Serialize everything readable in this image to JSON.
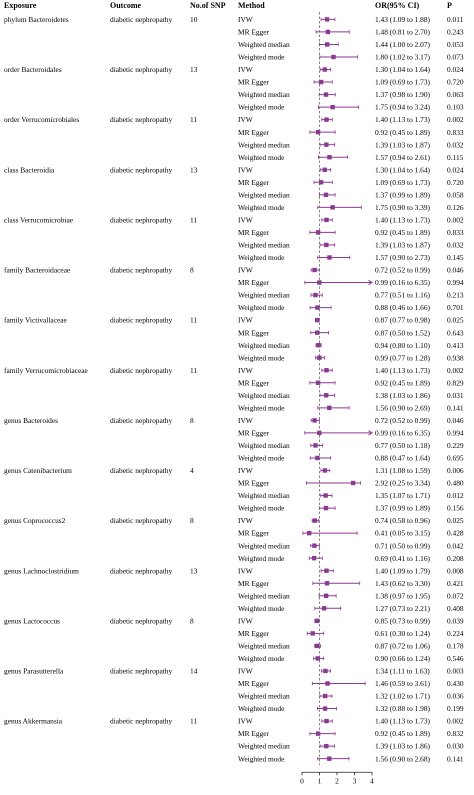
{
  "header": {
    "exposure": "Exposure",
    "outcome": "Outcome",
    "nsnp": "No.of SNP",
    "method": "Method",
    "or": "OR(95% CI)",
    "p": "P"
  },
  "chart_data": {
    "type": "forest",
    "xlim": [
      0,
      4
    ],
    "reference_line": 1,
    "x_ticks": [
      0,
      1,
      2,
      3,
      4
    ],
    "colors": {
      "marker": "#8a3a90",
      "line": "#8a3a90",
      "reference": "#666666"
    },
    "groups": [
      {
        "exposure": "phylum Bacteroidetes",
        "outcome": "diabetic nephropathy",
        "nsnp": "10",
        "rows": [
          {
            "method": "IVW",
            "or": 1.43,
            "lo": 1.09,
            "hi": 1.88,
            "or_text": "1.43 (1.09 to 1.88)",
            "p": "0.011"
          },
          {
            "method": "MR Egger",
            "or": 1.48,
            "lo": 0.81,
            "hi": 2.7,
            "or_text": "1.48 (0.81 to 2.70)",
            "p": "0.243"
          },
          {
            "method": "Weighted median",
            "or": 1.44,
            "lo": 1.0,
            "hi": 2.07,
            "or_text": "1.44 (1.00 to 2.07)",
            "p": "0.053"
          },
          {
            "method": "Weighted mode",
            "or": 1.8,
            "lo": 1.02,
            "hi": 3.17,
            "or_text": "1.80 (1.02 to 3.17)",
            "p": "0.073"
          }
        ]
      },
      {
        "exposure": "order Bacteroidales",
        "outcome": "diabetic nephropathy",
        "nsnp": "13",
        "rows": [
          {
            "method": "IVW",
            "or": 1.3,
            "lo": 1.04,
            "hi": 1.64,
            "or_text": "1.30 (1.04 to 1.64)",
            "p": "0.024"
          },
          {
            "method": "MR Egger",
            "or": 1.09,
            "lo": 0.69,
            "hi": 1.73,
            "or_text": "1.09 (0.69 to 1.73)",
            "p": "0.720"
          },
          {
            "method": "Weighted median",
            "or": 1.37,
            "lo": 0.98,
            "hi": 1.9,
            "or_text": "1.37 (0.98 to 1.90)",
            "p": "0.063"
          },
          {
            "method": "Weighted mode",
            "or": 1.75,
            "lo": 0.94,
            "hi": 3.24,
            "or_text": "1.75 (0.94 to 3.24)",
            "p": "0.103"
          }
        ]
      },
      {
        "exposure": "order Verrucomicrobiales",
        "outcome": "diabetic nephropathy",
        "nsnp": "11",
        "rows": [
          {
            "method": "IVW",
            "or": 1.4,
            "lo": 1.13,
            "hi": 1.73,
            "or_text": "1.40 (1.13 to 1.73)",
            "p": "0.002"
          },
          {
            "method": "MR Egger",
            "or": 0.92,
            "lo": 0.45,
            "hi": 1.89,
            "or_text": "0.92 (0.45 to 1.89)",
            "p": "0.833"
          },
          {
            "method": "Weighted median",
            "or": 1.39,
            "lo": 1.03,
            "hi": 1.87,
            "or_text": "1.39 (1.03 to 1.87)",
            "p": "0.032"
          },
          {
            "method": "Weighted mode",
            "or": 1.57,
            "lo": 0.94,
            "hi": 2.61,
            "or_text": "1.57 (0.94 to 2.61)",
            "p": "0.115"
          }
        ]
      },
      {
        "exposure": "class Bacteroidia",
        "outcome": "diabetic nephropathy",
        "nsnp": "13",
        "rows": [
          {
            "method": "IVW",
            "or": 1.3,
            "lo": 1.04,
            "hi": 1.64,
            "or_text": "1.30 (1.04 to 1.64)",
            "p": "0.024"
          },
          {
            "method": "MR Egger",
            "or": 1.09,
            "lo": 0.69,
            "hi": 1.73,
            "or_text": "1.09 (0.69 to 1.73)",
            "p": "0.720"
          },
          {
            "method": "Weighted median",
            "or": 1.37,
            "lo": 0.99,
            "hi": 1.89,
            "or_text": "1.37 (0.99 to 1.89)",
            "p": "0.058"
          },
          {
            "method": "Weighted mode",
            "or": 1.75,
            "lo": 0.9,
            "hi": 3.39,
            "or_text": "1.75 (0.90 to 3.39)",
            "p": "0.126"
          }
        ]
      },
      {
        "exposure": "class Verrucomicrobiae",
        "outcome": "diabetic nephropathy",
        "nsnp": "11",
        "rows": [
          {
            "method": "IVW",
            "or": 1.4,
            "lo": 1.13,
            "hi": 1.73,
            "or_text": "1.40 (1.13 to 1.73)",
            "p": "0.002"
          },
          {
            "method": "MR Egger",
            "or": 0.92,
            "lo": 0.45,
            "hi": 1.89,
            "or_text": "0.92 (0.45 to 1.89)",
            "p": "0.833"
          },
          {
            "method": "Weighted median",
            "or": 1.39,
            "lo": 1.03,
            "hi": 1.87,
            "or_text": "1.39 (1.03 to 1.87)",
            "p": "0.032"
          },
          {
            "method": "Weighted mode",
            "or": 1.57,
            "lo": 0.9,
            "hi": 2.73,
            "or_text": "1.57 (0.90 to 2.73)",
            "p": "0.145"
          }
        ]
      },
      {
        "exposure": "family Bacteroidaceae",
        "outcome": "diabetic nephropathy",
        "nsnp": "8",
        "rows": [
          {
            "method": "IVW",
            "or": 0.72,
            "lo": 0.52,
            "hi": 0.99,
            "or_text": "0.72 (0.52 to 0.99)",
            "p": "0.046"
          },
          {
            "method": "MR Egger",
            "or": 0.99,
            "lo": 0.16,
            "hi": 6.35,
            "or_text": "0.99 (0.16 to 6.35)",
            "p": "0.994"
          },
          {
            "method": "Weighted median",
            "or": 0.77,
            "lo": 0.51,
            "hi": 1.16,
            "or_text": "0.77 (0.51 to 1.16)",
            "p": "0.213"
          },
          {
            "method": "Weighted mode",
            "or": 0.88,
            "lo": 0.46,
            "hi": 1.66,
            "or_text": "0.88 (0.46 to 1.66)",
            "p": "0.701"
          }
        ]
      },
      {
        "exposure": "family Victivallaceae",
        "outcome": "diabetic nephropathy",
        "nsnp": "11",
        "rows": [
          {
            "method": "IVW",
            "or": 0.87,
            "lo": 0.77,
            "hi": 0.98,
            "or_text": "0.87 (0.77 to 0.98)",
            "p": "0.025"
          },
          {
            "method": "MR Egger",
            "or": 0.87,
            "lo": 0.5,
            "hi": 1.52,
            "or_text": "0.87 (0.50 to 1.52)",
            "p": "0.643"
          },
          {
            "method": "Weighted median",
            "or": 0.94,
            "lo": 0.8,
            "hi": 1.1,
            "or_text": "0.94 (0.80 to 1.10)",
            "p": "0.413"
          },
          {
            "method": "Weighted mode",
            "or": 0.99,
            "lo": 0.77,
            "hi": 1.28,
            "or_text": "0.99 (0.77 to 1.28)",
            "p": "0.938"
          }
        ]
      },
      {
        "exposure": "family Verrucomicrobiaceae",
        "outcome": "diabetic nephropathy",
        "nsnp": "11",
        "rows": [
          {
            "method": "IVW",
            "or": 1.4,
            "lo": 1.13,
            "hi": 1.73,
            "or_text": "1.40 (1.13 to 1.73)",
            "p": "0.002"
          },
          {
            "method": "MR Egger",
            "or": 0.92,
            "lo": 0.45,
            "hi": 1.89,
            "or_text": "0.92 (0.45 to 1.89)",
            "p": "0.829"
          },
          {
            "method": "Weighted median",
            "or": 1.38,
            "lo": 1.03,
            "hi": 1.86,
            "or_text": "1.38 (1.03 to 1.86)",
            "p": "0.031"
          },
          {
            "method": "Weighted mode",
            "or": 1.56,
            "lo": 0.9,
            "hi": 2.69,
            "or_text": "1.56 (0.90 to 2.69)",
            "p": "0.141"
          }
        ]
      },
      {
        "exposure": "genus Bacteroides",
        "outcome": "diabetic nephropathy",
        "nsnp": "8",
        "rows": [
          {
            "method": "IVW",
            "or": 0.72,
            "lo": 0.52,
            "hi": 0.99,
            "or_text": "0.72 (0.52 to 0.99)",
            "p": "0.046"
          },
          {
            "method": "MR Egger",
            "or": 0.99,
            "lo": 0.16,
            "hi": 6.35,
            "or_text": "0.99 (0.16 to 6.35)",
            "p": "0.994"
          },
          {
            "method": "Weighted median",
            "or": 0.77,
            "lo": 0.5,
            "hi": 1.18,
            "or_text": "0.77 (0.50 to 1.18)",
            "p": "0.229"
          },
          {
            "method": "Weighted mode",
            "or": 0.88,
            "lo": 0.47,
            "hi": 1.64,
            "or_text": "0.88 (0.47 to 1.64)",
            "p": "0.695"
          }
        ]
      },
      {
        "exposure": "genus Catenibacterium",
        "outcome": "diabetic nephropathy",
        "nsnp": "4",
        "rows": [
          {
            "method": "IVW",
            "or": 1.31,
            "lo": 1.08,
            "hi": 1.59,
            "or_text": "1.31 (1.08 to 1.59)",
            "p": "0.006"
          },
          {
            "method": "MR Egger",
            "or": 2.92,
            "lo": 0.25,
            "hi": 3.34,
            "or_text": "2.92 (0.25 to 3.34)",
            "p": "0.480"
          },
          {
            "method": "Weighted median",
            "or": 1.35,
            "lo": 1.07,
            "hi": 1.71,
            "or_text": "1.35 (1.07 to 1.71)",
            "p": "0.012"
          },
          {
            "method": "Weighted mode",
            "or": 1.37,
            "lo": 0.99,
            "hi": 1.89,
            "or_text": "1.37 (0.99 to 1.89)",
            "p": "0.156"
          }
        ]
      },
      {
        "exposure": "genus Coprococcus2",
        "outcome": "diabetic nephropathy",
        "nsnp": "8",
        "rows": [
          {
            "method": "IVW",
            "or": 0.74,
            "lo": 0.58,
            "hi": 0.96,
            "or_text": "0.74 (0.58 to 0.96)",
            "p": "0.025"
          },
          {
            "method": "MR Egger",
            "or": 0.41,
            "lo": 0.05,
            "hi": 3.15,
            "or_text": "0.41 (0.05 to 3.15)",
            "p": "0.428"
          },
          {
            "method": "Weighted median",
            "or": 0.71,
            "lo": 0.5,
            "hi": 0.99,
            "or_text": "0.71 (0.50 to 0.99)",
            "p": "0.042"
          },
          {
            "method": "Weighted mode",
            "or": 0.69,
            "lo": 0.41,
            "hi": 1.16,
            "or_text": "0.69 (0.41 to 1.16)",
            "p": "0.208"
          }
        ]
      },
      {
        "exposure": "genus Lachnoclostridium",
        "outcome": "diabetic nephropathy",
        "nsnp": "13",
        "rows": [
          {
            "method": "IVW",
            "or": 1.4,
            "lo": 1.09,
            "hi": 1.79,
            "or_text": "1.40 (1.09 to 1.79)",
            "p": "0.008"
          },
          {
            "method": "MR Egger",
            "or": 1.43,
            "lo": 0.62,
            "hi": 3.3,
            "or_text": "1.43 (0.62 to 3.30)",
            "p": "0.421"
          },
          {
            "method": "Weighted median",
            "or": 1.38,
            "lo": 0.97,
            "hi": 1.95,
            "or_text": "1.38 (0.97 to 1.95)",
            "p": "0.072"
          },
          {
            "method": "Weighted mode",
            "or": 1.27,
            "lo": 0.73,
            "hi": 2.21,
            "or_text": "1.27 (0.73 to 2.21)",
            "p": "0.408"
          }
        ]
      },
      {
        "exposure": "genus Lactococcus",
        "outcome": "diabetic nephropathy",
        "nsnp": "8",
        "rows": [
          {
            "method": "IVW",
            "or": 0.85,
            "lo": 0.73,
            "hi": 0.99,
            "or_text": "0.85 (0.73 to 0.99)",
            "p": "0.039"
          },
          {
            "method": "MR Egger",
            "or": 0.61,
            "lo": 0.3,
            "hi": 1.24,
            "or_text": "0.61 (0.30 to 1.24)",
            "p": "0.224"
          },
          {
            "method": "Weighted median",
            "or": 0.87,
            "lo": 0.72,
            "hi": 1.06,
            "or_text": "0.87 (0.72 to 1.06)",
            "p": "0.178"
          },
          {
            "method": "Weighted mode",
            "or": 0.9,
            "lo": 0.66,
            "hi": 1.24,
            "or_text": "0.90 (0.66 to 1.24)",
            "p": "0.546"
          }
        ]
      },
      {
        "exposure": "genus Parasutterella",
        "outcome": "diabetic nephropathy",
        "nsnp": "14",
        "rows": [
          {
            "method": "IVW",
            "or": 1.34,
            "lo": 1.11,
            "hi": 1.63,
            "or_text": "1.34 (1.11 to 1.63)",
            "p": "0.003"
          },
          {
            "method": "MR Egger",
            "or": 1.46,
            "lo": 0.59,
            "hi": 3.61,
            "or_text": "1.46 (0.59 to 3.61)",
            "p": "0.430"
          },
          {
            "method": "Weighted median",
            "or": 1.32,
            "lo": 1.02,
            "hi": 1.71,
            "or_text": "1.32 (1.02 to 1.71)",
            "p": "0.036"
          },
          {
            "method": "Weighted mode",
            "or": 1.32,
            "lo": 0.88,
            "hi": 1.98,
            "or_text": "1.32 (0.88 to 1.98)",
            "p": "0.199"
          }
        ]
      },
      {
        "exposure": "genus Akkermansia",
        "outcome": "diabetic nephropathy",
        "nsnp": "11",
        "rows": [
          {
            "method": "IVW",
            "or": 1.4,
            "lo": 1.13,
            "hi": 1.73,
            "or_text": "1.40 (1.13 to 1.73)",
            "p": "0.002"
          },
          {
            "method": "MR Egger",
            "or": 0.92,
            "lo": 0.45,
            "hi": 1.89,
            "or_text": "0.92 (0.45 to 1.89)",
            "p": "0.832"
          },
          {
            "method": "Weighted median",
            "or": 1.39,
            "lo": 1.03,
            "hi": 1.86,
            "or_text": "1.39 (1.03 to 1.86)",
            "p": "0.030"
          },
          {
            "method": "Weighted mode",
            "or": 1.56,
            "lo": 0.9,
            "hi": 2.68,
            "or_text": "1.56 (0.90 to 2.68)",
            "p": "0.141"
          }
        ]
      }
    ]
  }
}
